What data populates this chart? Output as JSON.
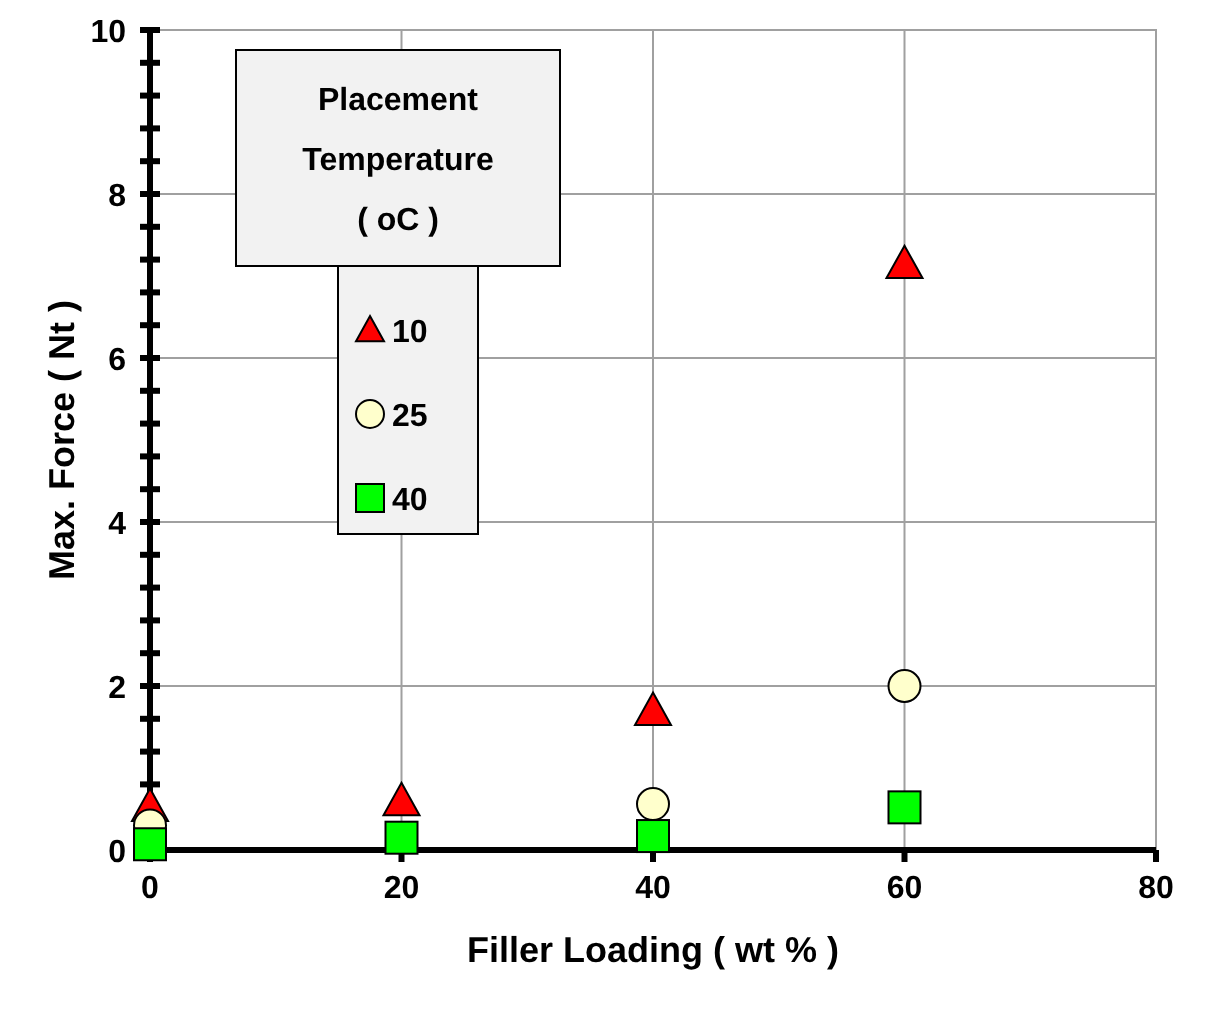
{
  "chart_data": {
    "type": "scatter",
    "xlabel": "Filler Loading ( wt % )",
    "ylabel": "Max. Force ( Nt )",
    "legend_title": "Placement Temperature ( oC )",
    "x": [
      0,
      20,
      40,
      60
    ],
    "series": [
      {
        "name": "10",
        "color": "#ff0000",
        "marker": "triangle",
        "values": [
          0.53,
          0.6,
          1.7,
          7.15
        ]
      },
      {
        "name": "25",
        "color": "#ffffcc",
        "marker": "circle",
        "values": [
          0.3,
          null,
          0.56,
          2.0
        ]
      },
      {
        "name": "40",
        "color": "#00ff00",
        "marker": "square",
        "values": [
          0.07,
          0.15,
          0.17,
          0.52
        ]
      }
    ],
    "xlim": [
      0,
      80
    ],
    "xticks": [
      0,
      20,
      40,
      60,
      80
    ],
    "ylim": [
      0,
      10
    ],
    "yticks": [
      0,
      {
        "value": 0.4,
        "label": null
      },
      {
        "value": 0.8,
        "label": null
      },
      {
        "value": 1.2,
        "label": null
      },
      {
        "value": 1.6,
        "label": null
      },
      2,
      {
        "value": 2.4,
        "label": null
      },
      {
        "value": 2.8,
        "label": null
      },
      {
        "value": 3.2,
        "label": null
      },
      {
        "value": 3.6,
        "label": null
      },
      4,
      {
        "value": 4.4,
        "label": null
      },
      {
        "value": 4.8,
        "label": null
      },
      {
        "value": 5.2,
        "label": null
      },
      {
        "value": 5.6,
        "label": null
      },
      6,
      {
        "value": 6.4,
        "label": null
      },
      {
        "value": 6.8,
        "label": null
      },
      {
        "value": 7.2,
        "label": null
      },
      {
        "value": 7.6,
        "label": null
      },
      8,
      {
        "value": 8.4,
        "label": null
      },
      {
        "value": 8.8,
        "label": null
      },
      {
        "value": 9.2,
        "label": null
      },
      {
        "value": 9.6,
        "label": null
      },
      10
    ],
    "grid": true,
    "legend": "top left"
  }
}
